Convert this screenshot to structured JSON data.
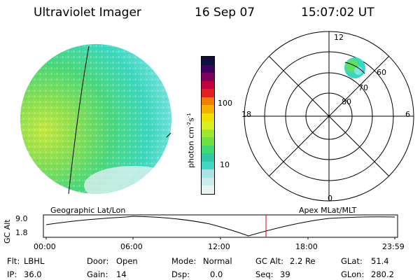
{
  "header": {
    "instrument": "Ultraviolet Imager",
    "date": "16 Sep 07",
    "time": "15:07:02 UT"
  },
  "colorbar": {
    "label": "photon cm",
    "label_exp1": "-2",
    "label_mid": "s",
    "label_exp2": "-1",
    "ticks": [
      "100",
      "10"
    ],
    "colors": [
      "#e8f4f4",
      "#c8ecec",
      "#a8e4e4",
      "#40d8c8",
      "#30c8a8",
      "#40d870",
      "#70e040",
      "#a0e830",
      "#d8f020",
      "#f0e000",
      "#f8b000",
      "#f08000",
      "#e02020",
      "#c00040",
      "#800060",
      "#400060",
      "#101040"
    ]
  },
  "polar": {
    "mlt_labels": {
      "top": "12",
      "left": "18",
      "right": "6",
      "bottom": "0"
    },
    "lat_labels": [
      "80",
      "70",
      "60"
    ]
  },
  "projection_labels": {
    "left": "Geographic Lat/Lon",
    "right": "Apex MLat/MLT"
  },
  "altitude_plot": {
    "ylabel": "GC Alt",
    "yticks": [
      "9.0",
      "1.8"
    ],
    "xticks": [
      "00:00",
      "06:00",
      "12:00",
      "18:00",
      "23:59"
    ],
    "current_time_marker": "15:07"
  },
  "info": {
    "flt_label": "Flt:",
    "flt_value": "LBHL",
    "ip_label": "IP:",
    "ip_value": "36.0",
    "door_label": "Door:",
    "door_value": "Open",
    "gain_label": "Gain:",
    "gain_value": "14",
    "mode_label": "Mode:",
    "mode_value": "Normal",
    "dsp_label": "Dsp:",
    "dsp_value": "0.0",
    "gcalt_label": "GC Alt:",
    "gcalt_value": "2.2 Re",
    "seq_label": "Seq:",
    "seq_value": "39",
    "glat_label": "GLat:",
    "glat_value": "51.4",
    "glon_label": "GLon:",
    "glon_value": "280.2"
  }
}
